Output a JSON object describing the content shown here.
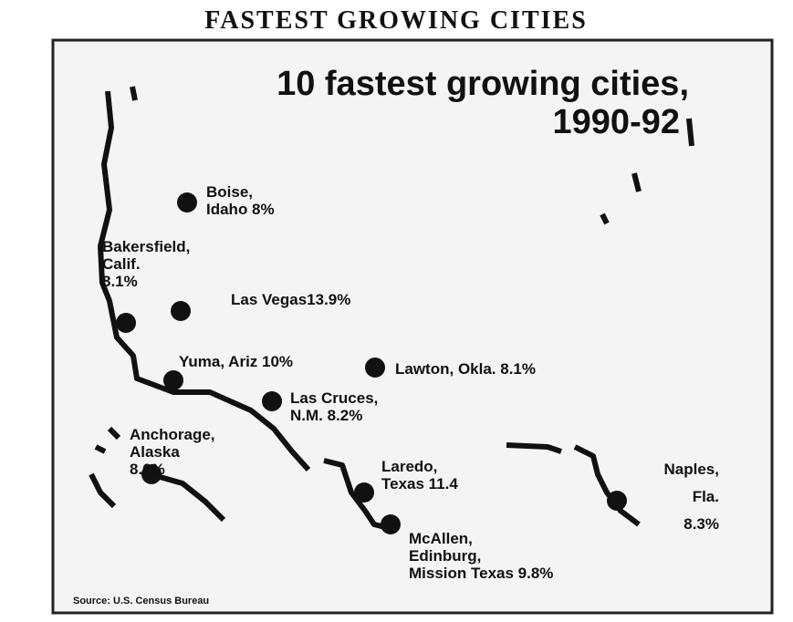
{
  "header": {
    "title": "FASTEST GROWING CITIES"
  },
  "map": {
    "title": [
      "10 fastest growing cities,",
      "1990-92"
    ],
    "cities": [
      {
        "lines": [
          "Boise,",
          "Idaho  8%"
        ]
      },
      {
        "lines": [
          "Bakersfield,",
          "Calif.",
          "8.1%"
        ]
      },
      {
        "lines": [
          "Las Vegas13.9%"
        ]
      },
      {
        "lines": [
          "Yuma, Ariz 10%"
        ]
      },
      {
        "lines": [
          "Lawton, Okla. 8.1%"
        ]
      },
      {
        "lines": [
          "Las Cruces,",
          "N.M. 8.2%"
        ]
      },
      {
        "lines": [
          "Anchorage,",
          "Alaska",
          "8.6%"
        ]
      },
      {
        "lines": [
          "Laredo,",
          "Texas 11.4"
        ]
      },
      {
        "lines": [
          "McAllen,",
          "Edinburg,",
          "Mission Texas 9.8%"
        ]
      },
      {
        "lines": [
          "Naples,",
          "Fla.",
          "8.3%"
        ]
      }
    ],
    "source": "Source: U.S. Census Bureau"
  }
}
